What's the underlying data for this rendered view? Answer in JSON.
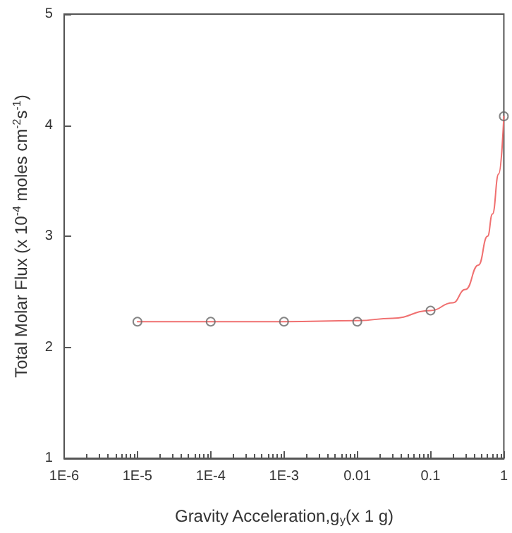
{
  "chart_data": {
    "type": "scatter",
    "xlabel": "Gravity Acceleration,g$_{y}$(x 1 g)",
    "ylabel": "Total Molar Flux (x 10$^{-4}$ moles cm$^{-2}$s$^{-1}$)",
    "log": "x",
    "xlim": [
      1e-06,
      1
    ],
    "ylim": [
      1,
      5
    ],
    "xticks": [
      {
        "value": 1e-06,
        "label": "1E-6"
      },
      {
        "value": 1e-05,
        "label": "1E-5"
      },
      {
        "value": 0.0001,
        "label": "1E-4"
      },
      {
        "value": 0.001,
        "label": "1E-3"
      },
      0.01,
      0.1,
      1
    ],
    "yticks": [
      1,
      2,
      3,
      4,
      5
    ],
    "grid": false,
    "series": [
      {
        "type": "line",
        "color": "#f07070",
        "line_style": "solid",
        "x": [
          1e-05,
          0.0001,
          0.001,
          0.01,
          0.03,
          0.1,
          0.2,
          0.3,
          0.45,
          0.6,
          0.7,
          0.85,
          1
        ],
        "values": [
          2.23,
          2.23,
          2.23,
          2.24,
          2.26,
          2.33,
          2.4,
          2.52,
          2.74,
          3.0,
          3.2,
          3.56,
          4.08
        ]
      },
      {
        "color": "#666666",
        "marker": "circle",
        "x": [
          1e-05,
          0.0001,
          0.001,
          0.01,
          0.1,
          1
        ],
        "values": [
          2.23,
          2.23,
          2.23,
          2.23,
          2.33,
          4.08
        ]
      }
    ]
  }
}
